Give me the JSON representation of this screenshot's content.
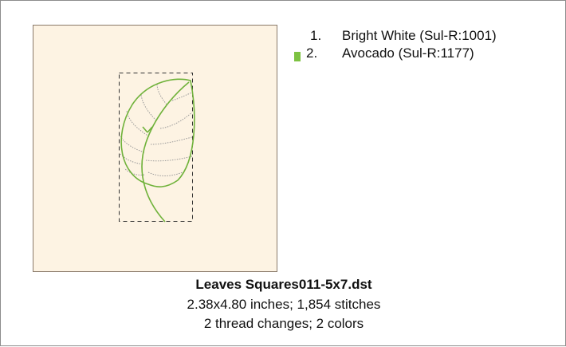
{
  "threads": [
    {
      "number": "1.",
      "name": "Bright White (Sul-R:1001)"
    },
    {
      "number": "2.",
      "name": "Avocado (Sul-R:1177)"
    }
  ],
  "design": {
    "filename": "Leaves Squares011-5x7.dst",
    "size_line": "2.38x4.80 inches; 1,854 stitches",
    "colors_line": "2 thread changes; 2 colors"
  }
}
